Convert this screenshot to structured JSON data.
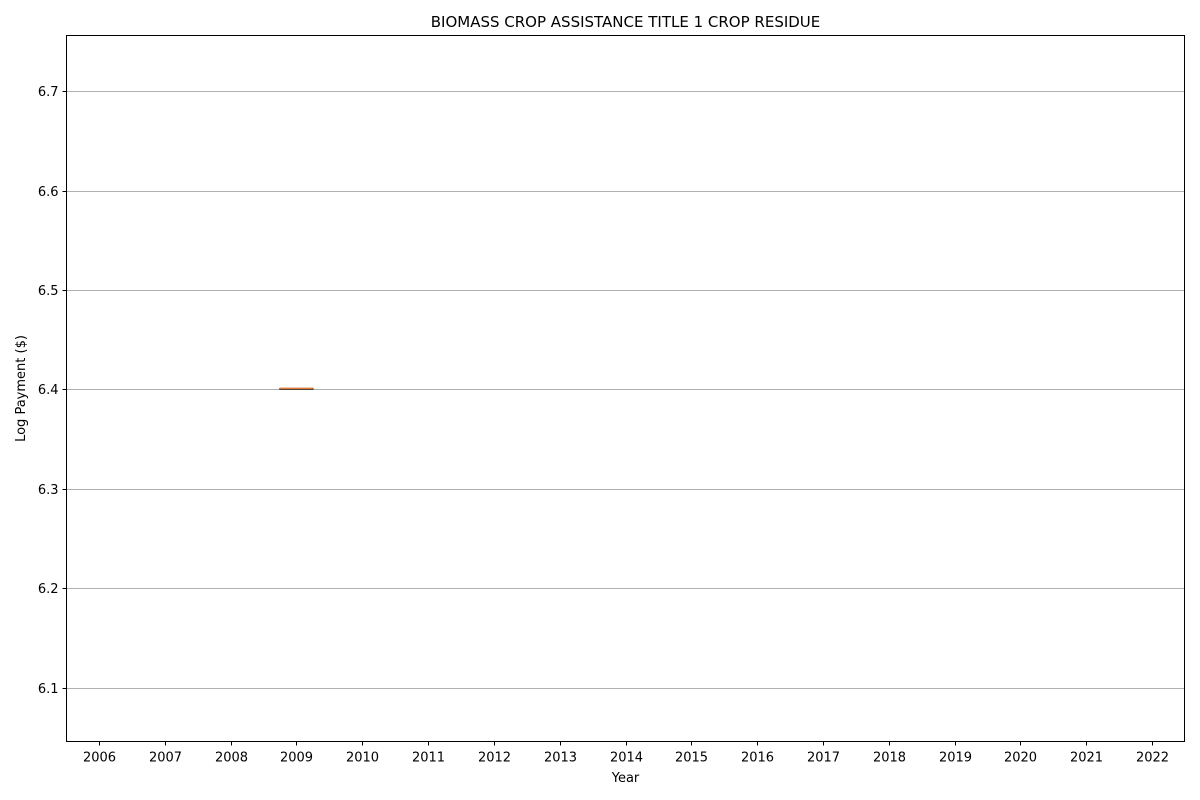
{
  "chart_data": {
    "type": "box",
    "title": "BIOMASS CROP ASSISTANCE TITLE 1 CROP RESIDUE",
    "xlabel": "Year",
    "ylabel": "Log Payment ($)",
    "categories": [
      "2006",
      "2007",
      "2008",
      "2009",
      "2010",
      "2011",
      "2012",
      "2013",
      "2014",
      "2015",
      "2016",
      "2017",
      "2018",
      "2019",
      "2020",
      "2021",
      "2022"
    ],
    "boxes": [
      {
        "category": "2009",
        "min": 6.401,
        "q1": 6.401,
        "median": 6.401,
        "q3": 6.401,
        "max": 6.401
      }
    ],
    "yticks": [
      "6.1",
      "6.2",
      "6.3",
      "6.4",
      "6.5",
      "6.6",
      "6.7"
    ],
    "ylim": [
      6.0459,
      6.7559
    ],
    "grid": "y",
    "colors": {
      "box": "#000000",
      "median": "#e07b39",
      "grid": "#b0b0b0"
    }
  }
}
